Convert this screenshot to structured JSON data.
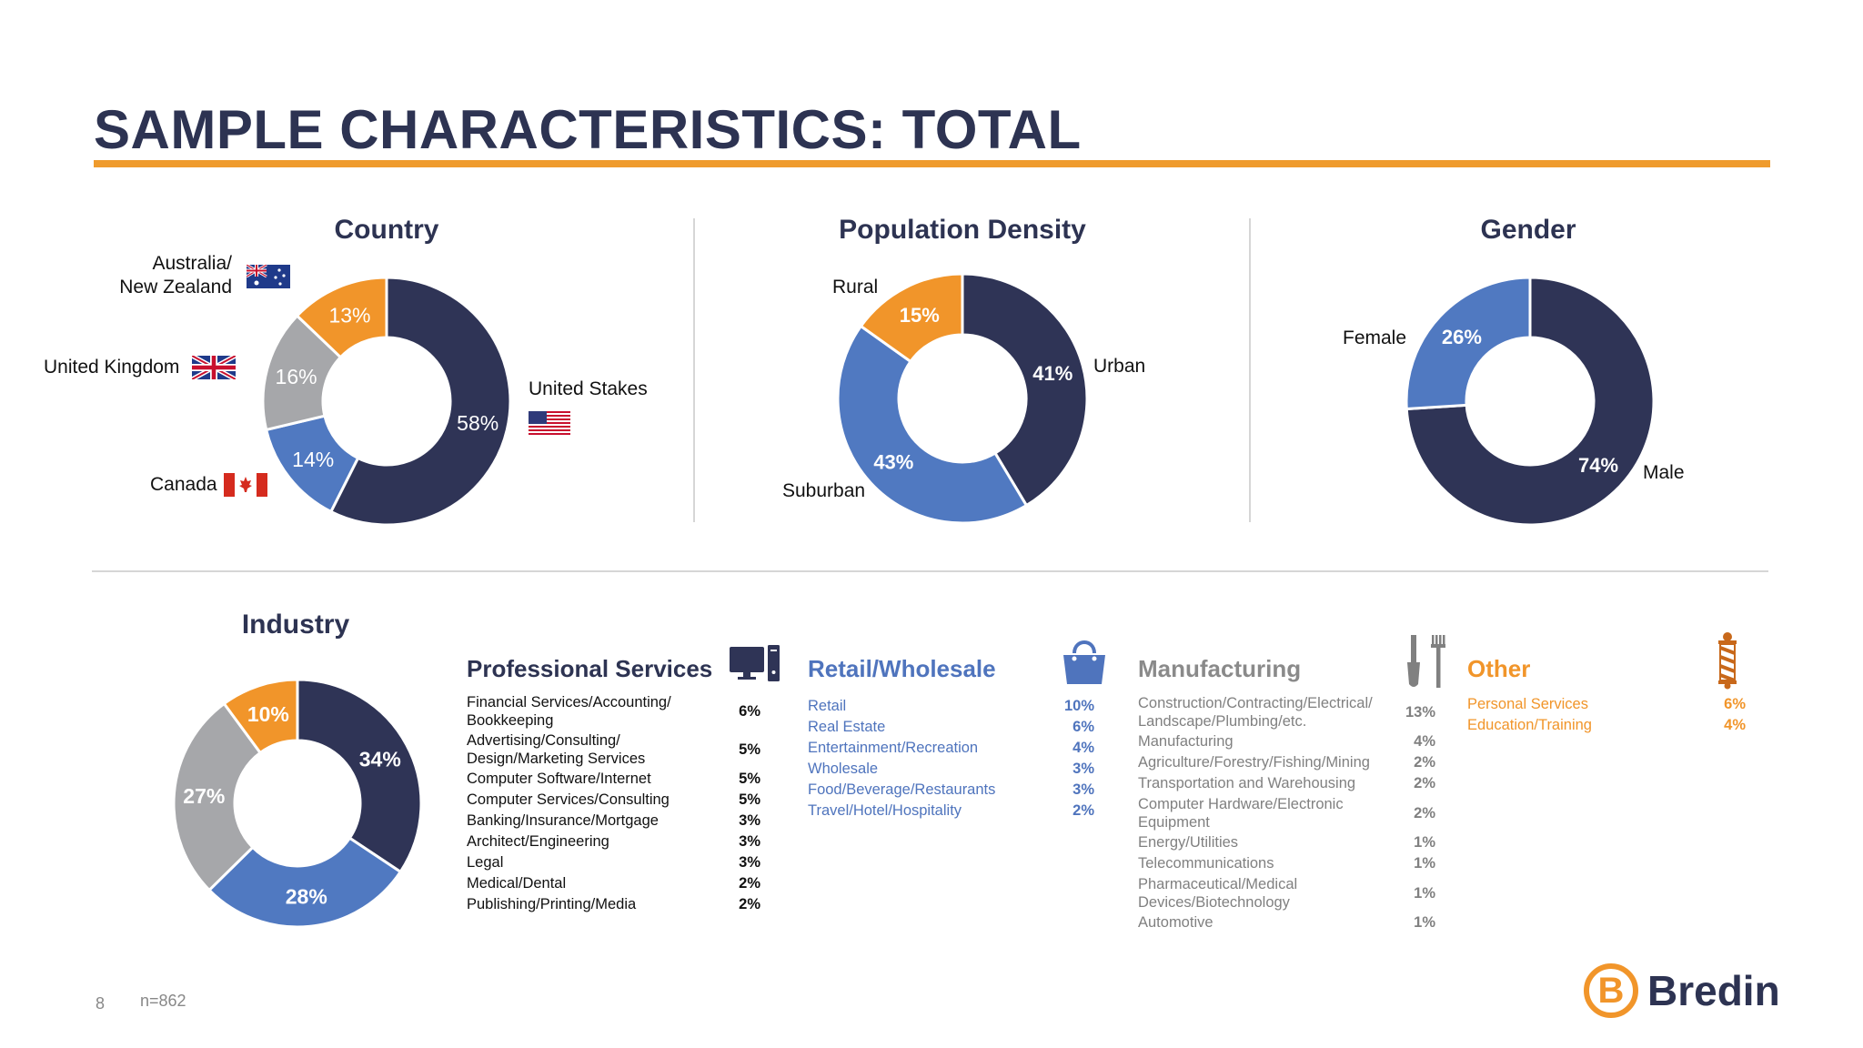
{
  "title": "SAMPLE CHARACTERISTICS: TOTAL",
  "colors": {
    "navy": "#2f3456",
    "blue": "#5079c1",
    "gray": "#a6a7aa",
    "orange": "#f1952a",
    "title_navy": "#2d3352",
    "manufacturing_gray": "#808080"
  },
  "chart_data": [
    {
      "type": "pie",
      "title": "Country",
      "slices": [
        {
          "label": "United Stakes",
          "value": 58,
          "display": "58%",
          "color": "#2f3456",
          "icon": "us-flag-icon"
        },
        {
          "label": "Canada",
          "value": 14,
          "display": "14%",
          "color": "#5079c1",
          "icon": "canada-flag-icon"
        },
        {
          "label": "United Kingdom",
          "value": 16,
          "display": "16%",
          "color": "#a6a7aa",
          "icon": "uk-flag-icon"
        },
        {
          "label": "Australia/\nNew Zealand",
          "value": 13,
          "display": "13%",
          "color": "#f1952a",
          "icon": "australia-flag-icon"
        }
      ]
    },
    {
      "type": "pie",
      "title": "Population Density",
      "slices": [
        {
          "label": "Urban",
          "value": 41,
          "display": "41%",
          "color": "#2f3456"
        },
        {
          "label": "Suburban",
          "value": 43,
          "display": "43%",
          "color": "#5079c1"
        },
        {
          "label": "Rural",
          "value": 15,
          "display": "15%",
          "color": "#f1952a"
        }
      ]
    },
    {
      "type": "pie",
      "title": "Gender",
      "slices": [
        {
          "label": "Male",
          "value": 74,
          "display": "74%",
          "color": "#2f3456"
        },
        {
          "label": "Female",
          "value": 26,
          "display": "26%",
          "color": "#5079c1"
        }
      ]
    },
    {
      "type": "pie",
      "title": "Industry",
      "slices": [
        {
          "label": "Professional Services",
          "value": 34,
          "display": "34%",
          "color": "#2f3456"
        },
        {
          "label": "Retail/Wholesale",
          "value": 28,
          "display": "28%",
          "color": "#5079c1"
        },
        {
          "label": "Manufacturing",
          "value": 27,
          "display": "27%",
          "color": "#a6a7aa"
        },
        {
          "label": "Other",
          "value": 10,
          "display": "10%",
          "color": "#f1952a"
        }
      ]
    }
  ],
  "industries": {
    "professional": {
      "title": "Professional Services",
      "icon": "computer-icon",
      "items": [
        {
          "label": "Financial Services/Accounting/\nBookkeeping",
          "value": "6%"
        },
        {
          "label": "Advertising/Consulting/\nDesign/Marketing Services",
          "value": "5%"
        },
        {
          "label": "Computer Software/Internet",
          "value": "5%"
        },
        {
          "label": "Computer Services/Consulting",
          "value": "5%"
        },
        {
          "label": "Banking/Insurance/Mortgage",
          "value": "3%"
        },
        {
          "label": "Architect/Engineering",
          "value": "3%"
        },
        {
          "label": "Legal",
          "value": "3%"
        },
        {
          "label": "Medical/Dental",
          "value": "2%"
        },
        {
          "label": "Publishing/Printing/Media",
          "value": "2%"
        }
      ]
    },
    "retail": {
      "title": "Retail/Wholesale",
      "icon": "handbag-icon",
      "items": [
        {
          "label": "Retail",
          "value": "10%"
        },
        {
          "label": "Real Estate",
          "value": "6%"
        },
        {
          "label": "Entertainment/Recreation",
          "value": "4%"
        },
        {
          "label": "Wholesale",
          "value": "3%"
        },
        {
          "label": "Food/Beverage/Restaurants",
          "value": "3%"
        },
        {
          "label": "Travel/Hotel/Hospitality",
          "value": "2%"
        }
      ]
    },
    "manufacturing": {
      "title": "Manufacturing",
      "icon": "tools-icon",
      "items": [
        {
          "label": "Construction/Contracting/Electrical/\nLandscape/Plumbing/etc.",
          "value": "13%"
        },
        {
          "label": "Manufacturing",
          "value": "4%"
        },
        {
          "label": "Agriculture/Forestry/Fishing/Mining",
          "value": "2%"
        },
        {
          "label": "Transportation and Warehousing",
          "value": "2%"
        },
        {
          "label": "Computer Hardware/Electronic\nEquipment",
          "value": "2%"
        },
        {
          "label": "Energy/Utilities",
          "value": "1%"
        },
        {
          "label": "Telecommunications",
          "value": "1%"
        },
        {
          "label": "Pharmaceutical/Medical\nDevices/Biotechnology",
          "value": "1%"
        },
        {
          "label": "Automotive",
          "value": "1%"
        }
      ]
    },
    "other": {
      "title": "Other",
      "icon": "barber-pole-icon",
      "items": [
        {
          "label": "Personal Services",
          "value": "6%"
        },
        {
          "label": "Education/Training",
          "value": "4%"
        }
      ]
    }
  },
  "footer": {
    "page_number": "8",
    "sample_size": "n=862",
    "logo_text": "Bredin",
    "logo_letter": "B"
  }
}
